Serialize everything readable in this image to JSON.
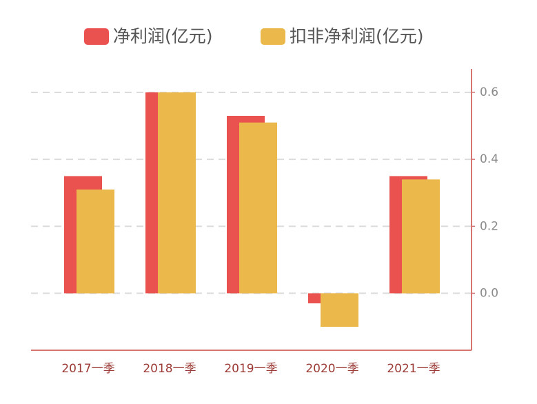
{
  "chart_data": {
    "type": "bar",
    "categories": [
      "2017一季",
      "2018一季",
      "2019一季",
      "2020一季",
      "2021一季"
    ],
    "series": [
      {
        "name": "净利润(亿元)",
        "color": "#e9524f",
        "values": [
          0.35,
          0.6,
          0.53,
          -0.03,
          0.35
        ]
      },
      {
        "name": "扣非净利润(亿元)",
        "color": "#ebb84c",
        "values": [
          0.31,
          0.6,
          0.51,
          -0.1,
          0.34
        ]
      }
    ],
    "ylim": [
      -0.17,
      0.67
    ],
    "yticks": [
      {
        "value": 0,
        "label": "0.0"
      },
      0.2,
      0.4,
      0.6
    ],
    "grid": true,
    "legend": "top"
  }
}
